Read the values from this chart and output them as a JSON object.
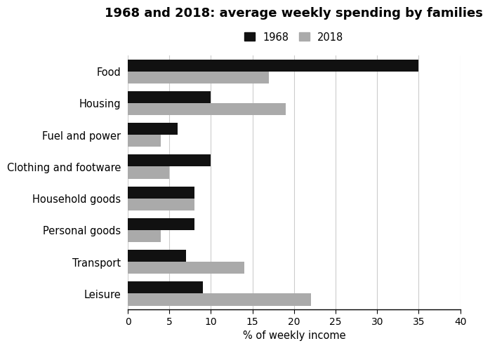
{
  "title": "1968 and 2018: average weekly spending by families",
  "categories": [
    "Food",
    "Housing",
    "Fuel and power",
    "Clothing and footware",
    "Household goods",
    "Personal goods",
    "Transport",
    "Leisure"
  ],
  "values_1968": [
    35,
    10,
    6,
    10,
    8,
    8,
    7,
    9
  ],
  "values_2018": [
    17,
    19,
    4,
    5,
    8,
    4,
    14,
    22
  ],
  "color_1968": "#111111",
  "color_2018": "#aaaaaa",
  "xlabel": "% of weekly income",
  "xlim": [
    0,
    40
  ],
  "xticks": [
    0,
    5,
    10,
    15,
    20,
    25,
    30,
    35,
    40
  ],
  "legend_labels": [
    "1968",
    "2018"
  ],
  "background_color": "#ffffff",
  "title_fontsize": 13,
  "label_fontsize": 10.5,
  "tick_fontsize": 10,
  "bar_height": 0.38
}
